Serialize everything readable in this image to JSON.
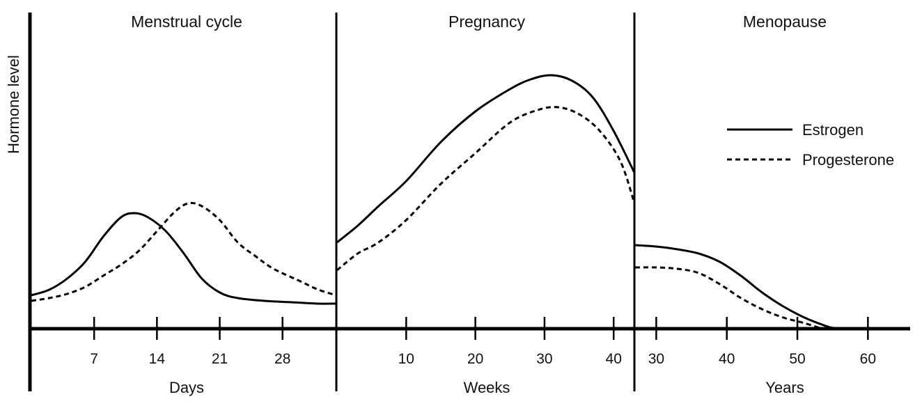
{
  "chart_data": {
    "type": "line",
    "ylabel": "Hormone level",
    "series_names": [
      "Estrogen",
      "Progesterone"
    ],
    "legend": {
      "position": "right",
      "items": [
        {
          "name": "Estrogen",
          "style": "solid"
        },
        {
          "name": "Progesterone",
          "style": "dashed"
        }
      ]
    },
    "panels": [
      {
        "title": "Menstrual cycle",
        "xlabel": "Days",
        "xlim": [
          0,
          34
        ],
        "ticks": [
          7,
          14,
          21,
          28
        ],
        "tick_labels": [
          "7",
          "14",
          "21",
          "28"
        ],
        "ylim": [
          0,
          100
        ],
        "series": [
          {
            "name": "Estrogen",
            "style": "solid",
            "x": [
              0,
              2,
              4,
              6,
              8,
              10,
              11.5,
              13,
              15,
              17,
              19,
              21,
              23,
              26,
              29,
              32,
              34
            ],
            "y": [
              12,
              14,
              18,
              24,
              33,
              40,
              41.5,
              40,
              35,
              27,
              18,
              13,
              11,
              10,
              9.5,
              9,
              9
            ]
          },
          {
            "name": "Progesterone",
            "style": "dashed",
            "x": [
              0,
              2,
              4,
              6,
              8,
              10,
              12,
              14,
              16,
              17.5,
              19,
              21,
              23,
              25,
              27,
              30,
              32,
              34
            ],
            "y": [
              10,
              11,
              12.5,
              15,
              19,
              23,
              28,
              35,
              42,
              45,
              44,
              39,
              31,
              26,
              21.5,
              17,
              14,
              12
            ]
          }
        ]
      },
      {
        "title": "Pregnancy",
        "xlabel": "Weeks",
        "xlim": [
          0,
          43
        ],
        "ticks": [
          10,
          20,
          30,
          40
        ],
        "tick_labels": [
          "10",
          "20",
          "30",
          "40"
        ],
        "ylim": [
          0,
          100
        ],
        "series": [
          {
            "name": "Estrogen",
            "style": "solid",
            "x": [
              0,
              3,
              6,
              10,
              15,
              20,
              25,
              28,
              31,
              34,
              37,
              40,
              43
            ],
            "y": [
              31,
              37,
              44,
              53,
              67,
              78,
              86,
              89.5,
              91,
              89,
              83,
              71,
              56
            ]
          },
          {
            "name": "Progesterone",
            "style": "dashed",
            "x": [
              0,
              3,
              6,
              10,
              15,
              20,
              25,
              29,
              32,
              35,
              38,
              41,
              43
            ],
            "y": [
              21,
              27,
              31,
              39,
              52,
              63,
              74,
              78.5,
              79.5,
              77,
              71,
              60,
              45
            ]
          }
        ]
      },
      {
        "title": "Menopause",
        "xlabel": "Years",
        "xlim": [
          27,
          65
        ],
        "ticks": [
          30,
          40,
          50,
          60
        ],
        "tick_labels": [
          "30",
          "40",
          "50",
          "60"
        ],
        "ylim": [
          0,
          100
        ],
        "series": [
          {
            "name": "Estrogen",
            "style": "solid",
            "x": [
              27,
              30,
              33,
              36,
              39,
              42,
              45,
              48,
              51,
              54,
              55.5
            ],
            "y": [
              30,
              29.5,
              28.5,
              27,
              24,
              19,
              13,
              8,
              4,
              1,
              0
            ]
          },
          {
            "name": "Progesterone",
            "style": "dashed",
            "x": [
              27,
              30,
              33,
              36,
              39,
              42,
              45,
              48,
              51,
              53.5
            ],
            "y": [
              22,
              22,
              21.5,
              20,
              16,
              11,
              7,
              4,
              2,
              0
            ]
          }
        ]
      }
    ]
  }
}
